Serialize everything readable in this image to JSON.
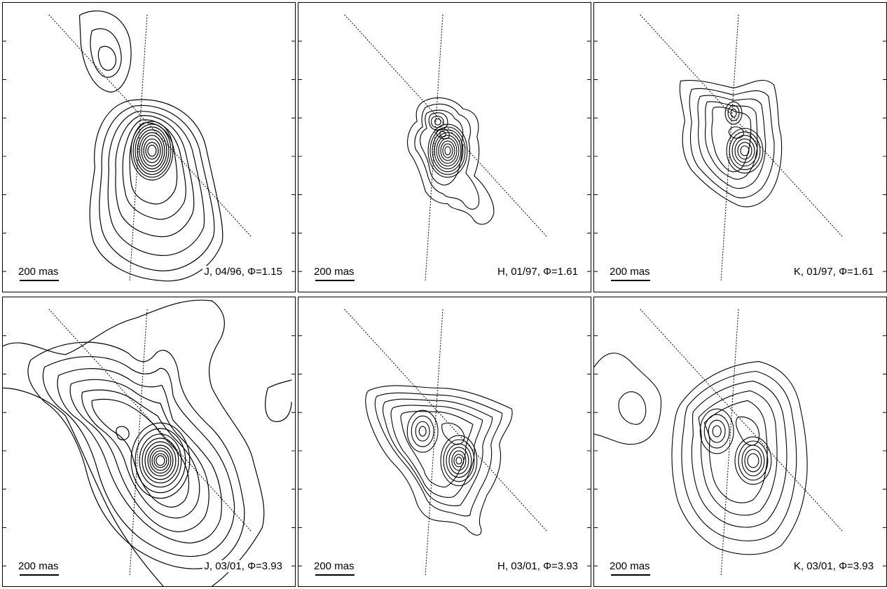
{
  "panels": [
    {
      "id": "J-96",
      "label": "J, 04/96, Φ=1.15",
      "scale": "200 mas"
    },
    {
      "id": "H-97",
      "label": "H, 01/97, Φ=1.61",
      "scale": "200 mas"
    },
    {
      "id": "K-97",
      "label": "K, 01/97, Φ=1.61",
      "scale": "200 mas"
    },
    {
      "id": "J-01",
      "label": "J, 03/01, Φ=3.93",
      "scale": "200 mas"
    },
    {
      "id": "H-01",
      "label": "H, 03/01, Φ=3.93",
      "scale": "200 mas"
    },
    {
      "id": "K-01",
      "label": "K, 03/01, Φ=3.93",
      "scale": "200 mas"
    }
  ],
  "colors": {
    "contour": "#000000",
    "background": "#ffffff"
  }
}
